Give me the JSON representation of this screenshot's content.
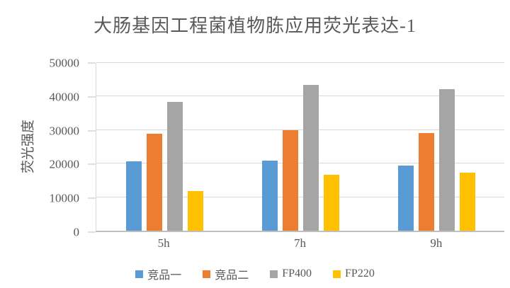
{
  "title": "大肠基因工程菌植物胨应用荧光表达-1",
  "chart_data": {
    "type": "bar",
    "title": "大肠基因工程菌植物胨应用荧光表达-1",
    "categories": [
      "5h",
      "7h",
      "9h"
    ],
    "series": [
      {
        "name": "竞品一",
        "color": "#5B9BD5",
        "values": [
          20600,
          20800,
          19500
        ]
      },
      {
        "name": "竞品二",
        "color": "#ED7D31",
        "values": [
          28900,
          29900,
          29100
        ]
      },
      {
        "name": "FP400",
        "color": "#A5A5A5",
        "values": [
          38500,
          43500,
          42100
        ]
      },
      {
        "name": "FP220",
        "color": "#FFC000",
        "values": [
          11800,
          16600,
          17200
        ]
      }
    ],
    "xlabel": "",
    "ylabel": "荧光强度",
    "ylim": [
      0,
      50000
    ],
    "yticks": [
      0,
      10000,
      20000,
      30000,
      40000,
      50000
    ],
    "grid": true,
    "legend_position": "bottom",
    "colors": {
      "text": "#595959",
      "gridline": "#D9D9D9",
      "axis_line": "#BFBFBF",
      "background": "#FFFFFF"
    }
  }
}
